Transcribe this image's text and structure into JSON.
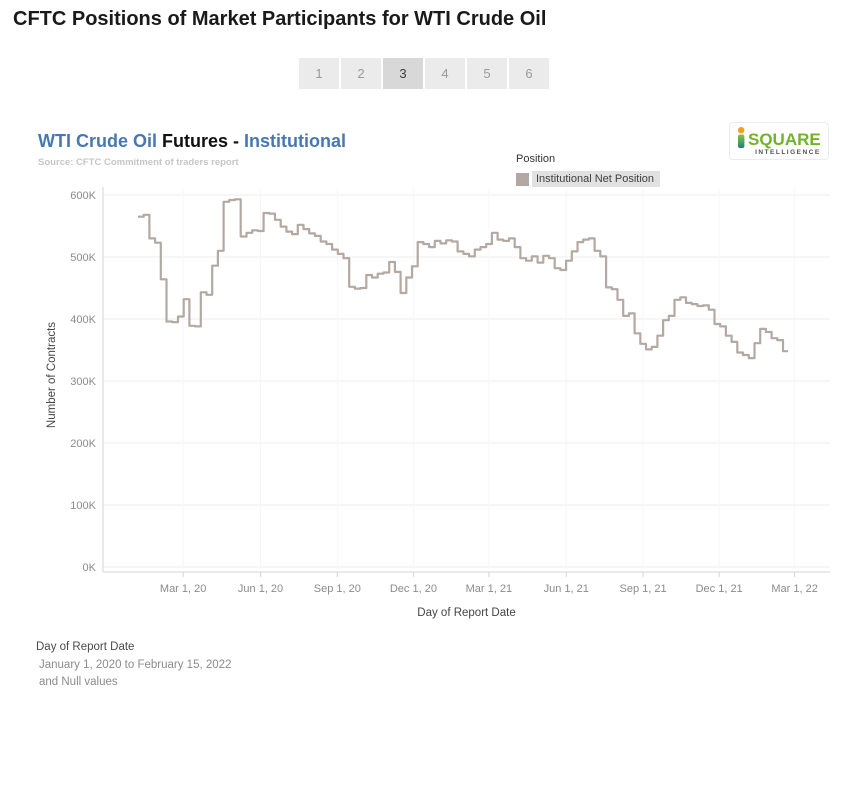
{
  "page": {
    "title": "CFTC Positions of Market Participants for WTI Crude Oil"
  },
  "pagination": {
    "pages": [
      "1",
      "2",
      "3",
      "4",
      "5",
      "6"
    ],
    "active_page": "3"
  },
  "chart_header": {
    "title_part1": "WTI Crude Oil",
    "title_part2": " Futures - ",
    "title_part3": "Institutional",
    "source": "Source: CFTC Commitment of traders report"
  },
  "logo": {
    "part1": "SQUARE",
    "part2": "INTELLIGENCE"
  },
  "legend": {
    "title": "Position",
    "items": [
      {
        "label": "Institutional Net Position",
        "color": "#b3a9a2"
      }
    ]
  },
  "chart_data": {
    "type": "line",
    "step": true,
    "title": "WTI Crude Oil Futures - Institutional",
    "xlabel": "Day of Report Date",
    "ylabel": "Number of Contracts",
    "x_start_date": "2020-01-07",
    "x_end_date": "2022-02-15",
    "interval": "weekly",
    "ylim_k": [
      0,
      600
    ],
    "grid": "horizontal",
    "legend_position": "top-right",
    "y_ticks": [
      {
        "label": "600K",
        "v": 600
      },
      {
        "label": "500K",
        "v": 500
      },
      {
        "label": "400K",
        "v": 400
      },
      {
        "label": "300K",
        "v": 300
      },
      {
        "label": "200K",
        "v": 200
      },
      {
        "label": "100K",
        "v": 100
      },
      {
        "label": "0K",
        "v": 0
      }
    ],
    "x_ticks": [
      {
        "label": "Mar 1, 20",
        "f": 0.07
      },
      {
        "label": "Jun 1, 20",
        "f": 0.19
      },
      {
        "label": "Sep 1, 20",
        "f": 0.309
      },
      {
        "label": "Dec 1, 20",
        "f": 0.427
      },
      {
        "label": "Mar 1, 21",
        "f": 0.544
      },
      {
        "label": "Jun 1, 21",
        "f": 0.664
      },
      {
        "label": "Sep 1, 21",
        "f": 0.783
      },
      {
        "label": "Dec 1, 21",
        "f": 0.901
      },
      {
        "label": "Mar 1, 22",
        "f": 1.018
      }
    ],
    "series": [
      {
        "name": "Institutional Net Position",
        "color": "#b3a9a2",
        "unit": "thousand contracts",
        "values_k": [
          565,
          568,
          530,
          523,
          464,
          396,
          395,
          404,
          432,
          389,
          388,
          443,
          439,
          486,
          510,
          589,
          592,
          593,
          533,
          539,
          543,
          542,
          571,
          570,
          560,
          549,
          541,
          537,
          552,
          545,
          538,
          534,
          525,
          521,
          512,
          505,
          498,
          452,
          449,
          450,
          471,
          467,
          473,
          475,
          492,
          476,
          442,
          467,
          485,
          524,
          521,
          516,
          526,
          522,
          527,
          525,
          509,
          505,
          501,
          512,
          516,
          521,
          539,
          528,
          526,
          530,
          516,
          498,
          494,
          501,
          491,
          502,
          498,
          482,
          479,
          494,
          509,
          524,
          528,
          530,
          510,
          501,
          451,
          448,
          431,
          405,
          409,
          377,
          360,
          351,
          355,
          373,
          398,
          405,
          431,
          435,
          426,
          424,
          421,
          422,
          415,
          392,
          388,
          373,
          363,
          346,
          342,
          337,
          361,
          384,
          379,
          369,
          366,
          348
        ]
      }
    ]
  },
  "footer": {
    "title": "Day of Report Date",
    "line1": "January 1, 2020 to February 15, 2022",
    "line2": "and Null values"
  },
  "colors": {
    "title_blue": "#4878b0",
    "line": "#b3a9a2",
    "grid": "#eeeeee",
    "axis": "#d4d4d4",
    "tick_text": "#8b8b8b",
    "logo_green": "#72b32c",
    "logo_orange": "#f2a118",
    "logo_teal": "#12867c"
  }
}
